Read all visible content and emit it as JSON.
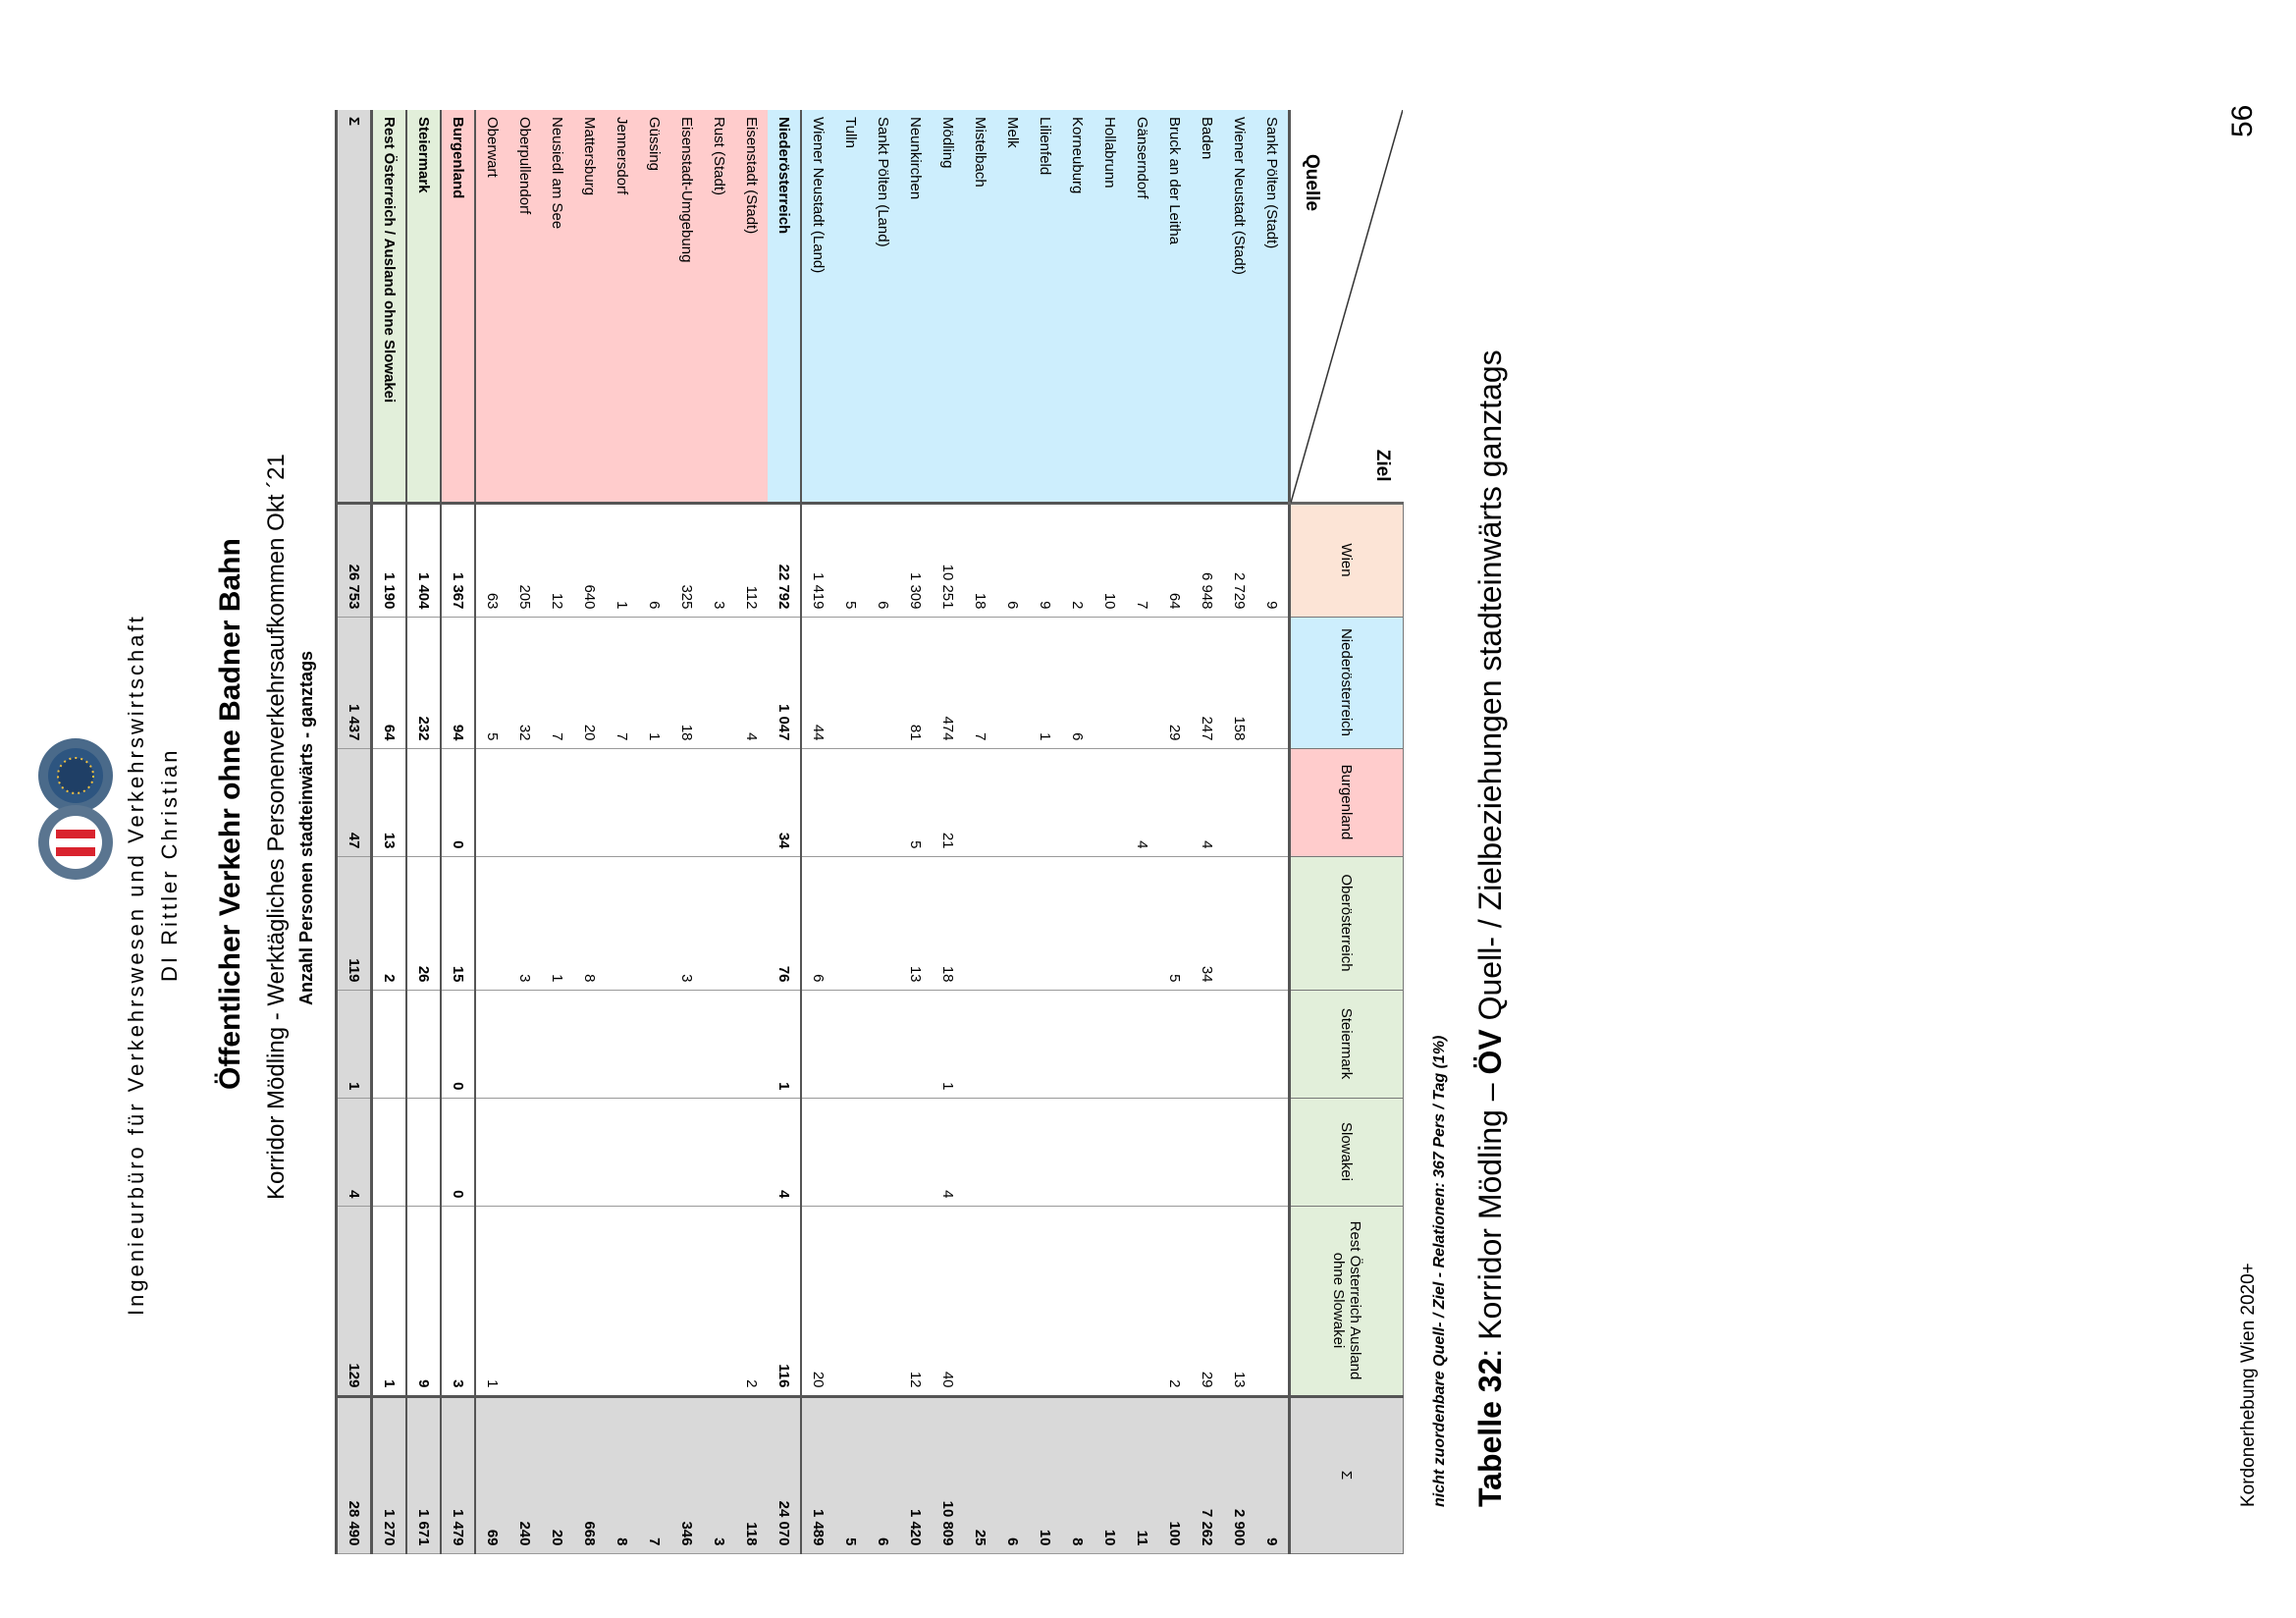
{
  "header": {
    "line1": "Ingenieurbüro für Verkehrswesen und Verkehrswirtschaft",
    "line2": "DI Rittler Christian",
    "logo_icon": "ingenieur-buero-logo-icon"
  },
  "title": {
    "main": "Öffentlicher Verkehr ohne Badner Bahn",
    "sub": "Korridor Mödling - Werktägliches Personenverkehrsaufkommen Okt ´21",
    "unit": "Anzahl Personen stadteinwärts - ganztags"
  },
  "table": {
    "corner_ziel": "Ziel",
    "corner_quelle": "Quelle",
    "columns": [
      "Wien",
      "Niederösterreich",
      "Burgenland",
      "Oberösterreich",
      "Steiermark",
      "Slowakei",
      "Rest Österreich Ausland ohne Slowakei",
      "Σ"
    ],
    "rows": [
      {
        "name": "Sankt Pölten (Stadt)",
        "cells": [
          "9",
          "",
          "",
          "",
          "",
          "",
          "",
          "9"
        ]
      },
      {
        "name": "Wiener Neustadt (Stadt)",
        "cells": [
          "2 729",
          "158",
          "",
          "",
          "",
          "",
          "13",
          "2 900"
        ]
      },
      {
        "name": "Baden",
        "cells": [
          "6 948",
          "247",
          "4",
          "34",
          "",
          "",
          "29",
          "7 262"
        ]
      },
      {
        "name": "Bruck an der Leitha",
        "cells": [
          "64",
          "29",
          "",
          "5",
          "",
          "",
          "2",
          "100"
        ]
      },
      {
        "name": "Gänserndorf",
        "cells": [
          "7",
          "",
          "4",
          "",
          "",
          "",
          "",
          "11"
        ]
      },
      {
        "name": "Hollabrunn",
        "cells": [
          "10",
          "",
          "",
          "",
          "",
          "",
          "",
          "10"
        ]
      },
      {
        "name": "Korneuburg",
        "cells": [
          "2",
          "6",
          "",
          "",
          "",
          "",
          "",
          "8"
        ]
      },
      {
        "name": "Lilienfeld",
        "cells": [
          "9",
          "1",
          "",
          "",
          "",
          "",
          "",
          "10"
        ]
      },
      {
        "name": "Melk",
        "cells": [
          "6",
          "",
          "",
          "",
          "",
          "",
          "",
          "6"
        ]
      },
      {
        "name": "Mistelbach",
        "cells": [
          "18",
          "7",
          "",
          "",
          "",
          "",
          "",
          "25"
        ]
      },
      {
        "name": "Mödling",
        "cells": [
          "10 251",
          "474",
          "21",
          "18",
          "1",
          "4",
          "40",
          "10 809"
        ]
      },
      {
        "name": "Neunkirchen",
        "cells": [
          "1 309",
          "81",
          "5",
          "13",
          "",
          "",
          "12",
          "1 420"
        ]
      },
      {
        "name": "Sankt Pölten (Land)",
        "cells": [
          "6",
          "",
          "",
          "",
          "",
          "",
          "",
          "6"
        ]
      },
      {
        "name": "Tulln",
        "cells": [
          "5",
          "",
          "",
          "",
          "",
          "",
          "",
          "5"
        ]
      },
      {
        "name": "Wiener Neustadt (Land)",
        "cells": [
          "1 419",
          "44",
          "",
          "6",
          "",
          "",
          "20",
          "1 489"
        ]
      },
      {
        "name": "Niederösterreich",
        "cells": [
          "22 792",
          "1 047",
          "34",
          "76",
          "1",
          "4",
          "116",
          "24 070"
        ]
      },
      {
        "name": "Eisenstadt (Stadt)",
        "cells": [
          "112",
          "4",
          "",
          "",
          "",
          "",
          "2",
          "118"
        ]
      },
      {
        "name": "Rust (Stadt)",
        "cells": [
          "3",
          "",
          "",
          "",
          "",
          "",
          "",
          "3"
        ]
      },
      {
        "name": "Eisenstadt-Umgebung",
        "cells": [
          "325",
          "18",
          "",
          "3",
          "",
          "",
          "",
          "346"
        ]
      },
      {
        "name": "Güssing",
        "cells": [
          "6",
          "1",
          "",
          "",
          "",
          "",
          "",
          "7"
        ]
      },
      {
        "name": "Jennersdorf",
        "cells": [
          "1",
          "7",
          "",
          "",
          "",
          "",
          "",
          "8"
        ]
      },
      {
        "name": "Mattersburg",
        "cells": [
          "640",
          "20",
          "",
          "8",
          "",
          "",
          "",
          "668"
        ]
      },
      {
        "name": "Neusiedl am See",
        "cells": [
          "12",
          "7",
          "",
          "1",
          "",
          "",
          "",
          "20"
        ]
      },
      {
        "name": "Oberpullendorf",
        "cells": [
          "205",
          "32",
          "",
          "3",
          "",
          "",
          "",
          "240"
        ]
      },
      {
        "name": "Oberwart",
        "cells": [
          "63",
          "5",
          "",
          "",
          "",
          "",
          "1",
          "69"
        ]
      },
      {
        "name": "Burgenland",
        "cells": [
          "1 367",
          "94",
          "0",
          "15",
          "0",
          "0",
          "3",
          "1 479"
        ]
      },
      {
        "name": "Steiermark",
        "cells": [
          "1 404",
          "232",
          "",
          "26",
          "",
          "",
          "9",
          "1 671"
        ]
      },
      {
        "name": "Rest Österreich / Ausland ohne Slowakei",
        "cells": [
          "1 190",
          "64",
          "13",
          "2",
          "",
          "",
          "1",
          "1 270"
        ]
      },
      {
        "name": "Σ",
        "cells": [
          "26 753",
          "1 437",
          "47",
          "119",
          "1",
          "4",
          "129",
          "28 490"
        ]
      }
    ]
  },
  "footnote": "nicht zuordenbare Quell- / Ziel - Relationen: 367 Pers / Tag (1%)",
  "caption": {
    "label": "Tabelle 32",
    "text_a": ": Korridor Mödling – ",
    "oev": "ÖV",
    "text_b": " Quell- / Zielbeziehungen stadteinwärts ganztags"
  },
  "page_number": "56",
  "footer": "Kordonerhebung Wien 2020+"
}
